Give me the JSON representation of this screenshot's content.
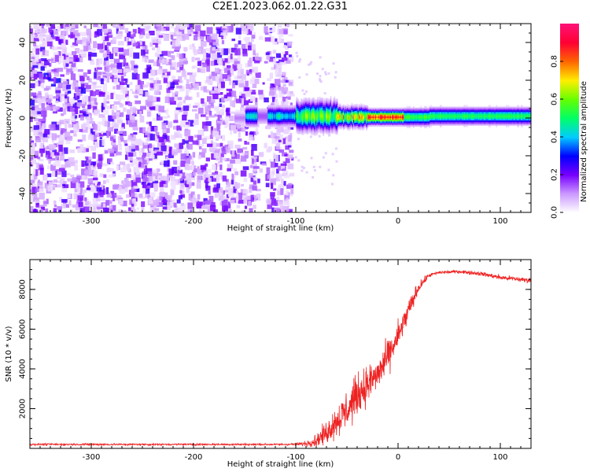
{
  "figure": {
    "title": "C2E1.2023.062.01.22.G31"
  },
  "chart_data": [
    {
      "type": "heatmap",
      "xlabel": "Height of straight line (km)",
      "ylabel": "Frequency (Hz)",
      "xlim": [
        -360,
        130
      ],
      "ylim": [
        -50,
        50
      ],
      "xticks": [
        -300,
        -200,
        -100,
        0,
        100
      ],
      "yticks": [
        -40,
        -20,
        0,
        20,
        40
      ],
      "colorbar": {
        "label": "Normalized spectral amplitude",
        "range": [
          0,
          1
        ],
        "ticks": [
          0.0,
          0.2,
          0.4,
          0.6,
          0.8
        ],
        "colormap": [
          "#ffffff",
          "#cc99ff",
          "#7700ff",
          "#0000ff",
          "#00ccff",
          "#00ff66",
          "#66ff00",
          "#ffee00",
          "#ff6600",
          "#ff0033",
          "#ff1177"
        ]
      },
      "regions": [
        {
          "x": [
            -360,
            -103
          ],
          "description_level": 0.12,
          "freq_spread": [
            -50,
            50
          ]
        },
        {
          "x": [
            -155,
            -100
          ],
          "center_freq": 0,
          "peak_level": 0.45
        },
        {
          "x": [
            -100,
            0
          ],
          "center_freq": 1,
          "peak_level": 0.95
        },
        {
          "x": [
            0,
            130
          ],
          "center_freq": 0.5,
          "peak_level": 0.55
        }
      ]
    },
    {
      "type": "line",
      "xlabel": "Height of straight line (km)",
      "ylabel": "SNR (10 * v/v)",
      "xlim": [
        -360,
        130
      ],
      "ylim": [
        0,
        9500
      ],
      "xticks": [
        -300,
        -200,
        -100,
        0,
        100
      ],
      "yticks": [
        2000,
        4000,
        6000,
        8000
      ],
      "series": [
        {
          "color": "#ee2222",
          "profile": {
            "x": [
              -360,
              -110,
              -100,
              -90,
              -80,
              -70,
              -60,
              -50,
              -40,
              -30,
              -20,
              -10,
              0,
              10,
              20,
              30,
              40,
              60,
              80,
              100,
              130
            ],
            "mean": [
              200,
              200,
              210,
              240,
              400,
              800,
              1400,
              1900,
              2700,
              3200,
              3700,
              4600,
              5600,
              6900,
              8100,
              8700,
              8850,
              8900,
              8800,
              8600,
              8450
            ],
            "noise": [
              70,
              70,
              90,
              200,
              500,
              800,
              1200,
              1500,
              1500,
              1400,
              1300,
              1200,
              1100,
              800,
              400,
              150,
              120,
              120,
              150,
              180,
              200
            ]
          }
        }
      ]
    }
  ]
}
